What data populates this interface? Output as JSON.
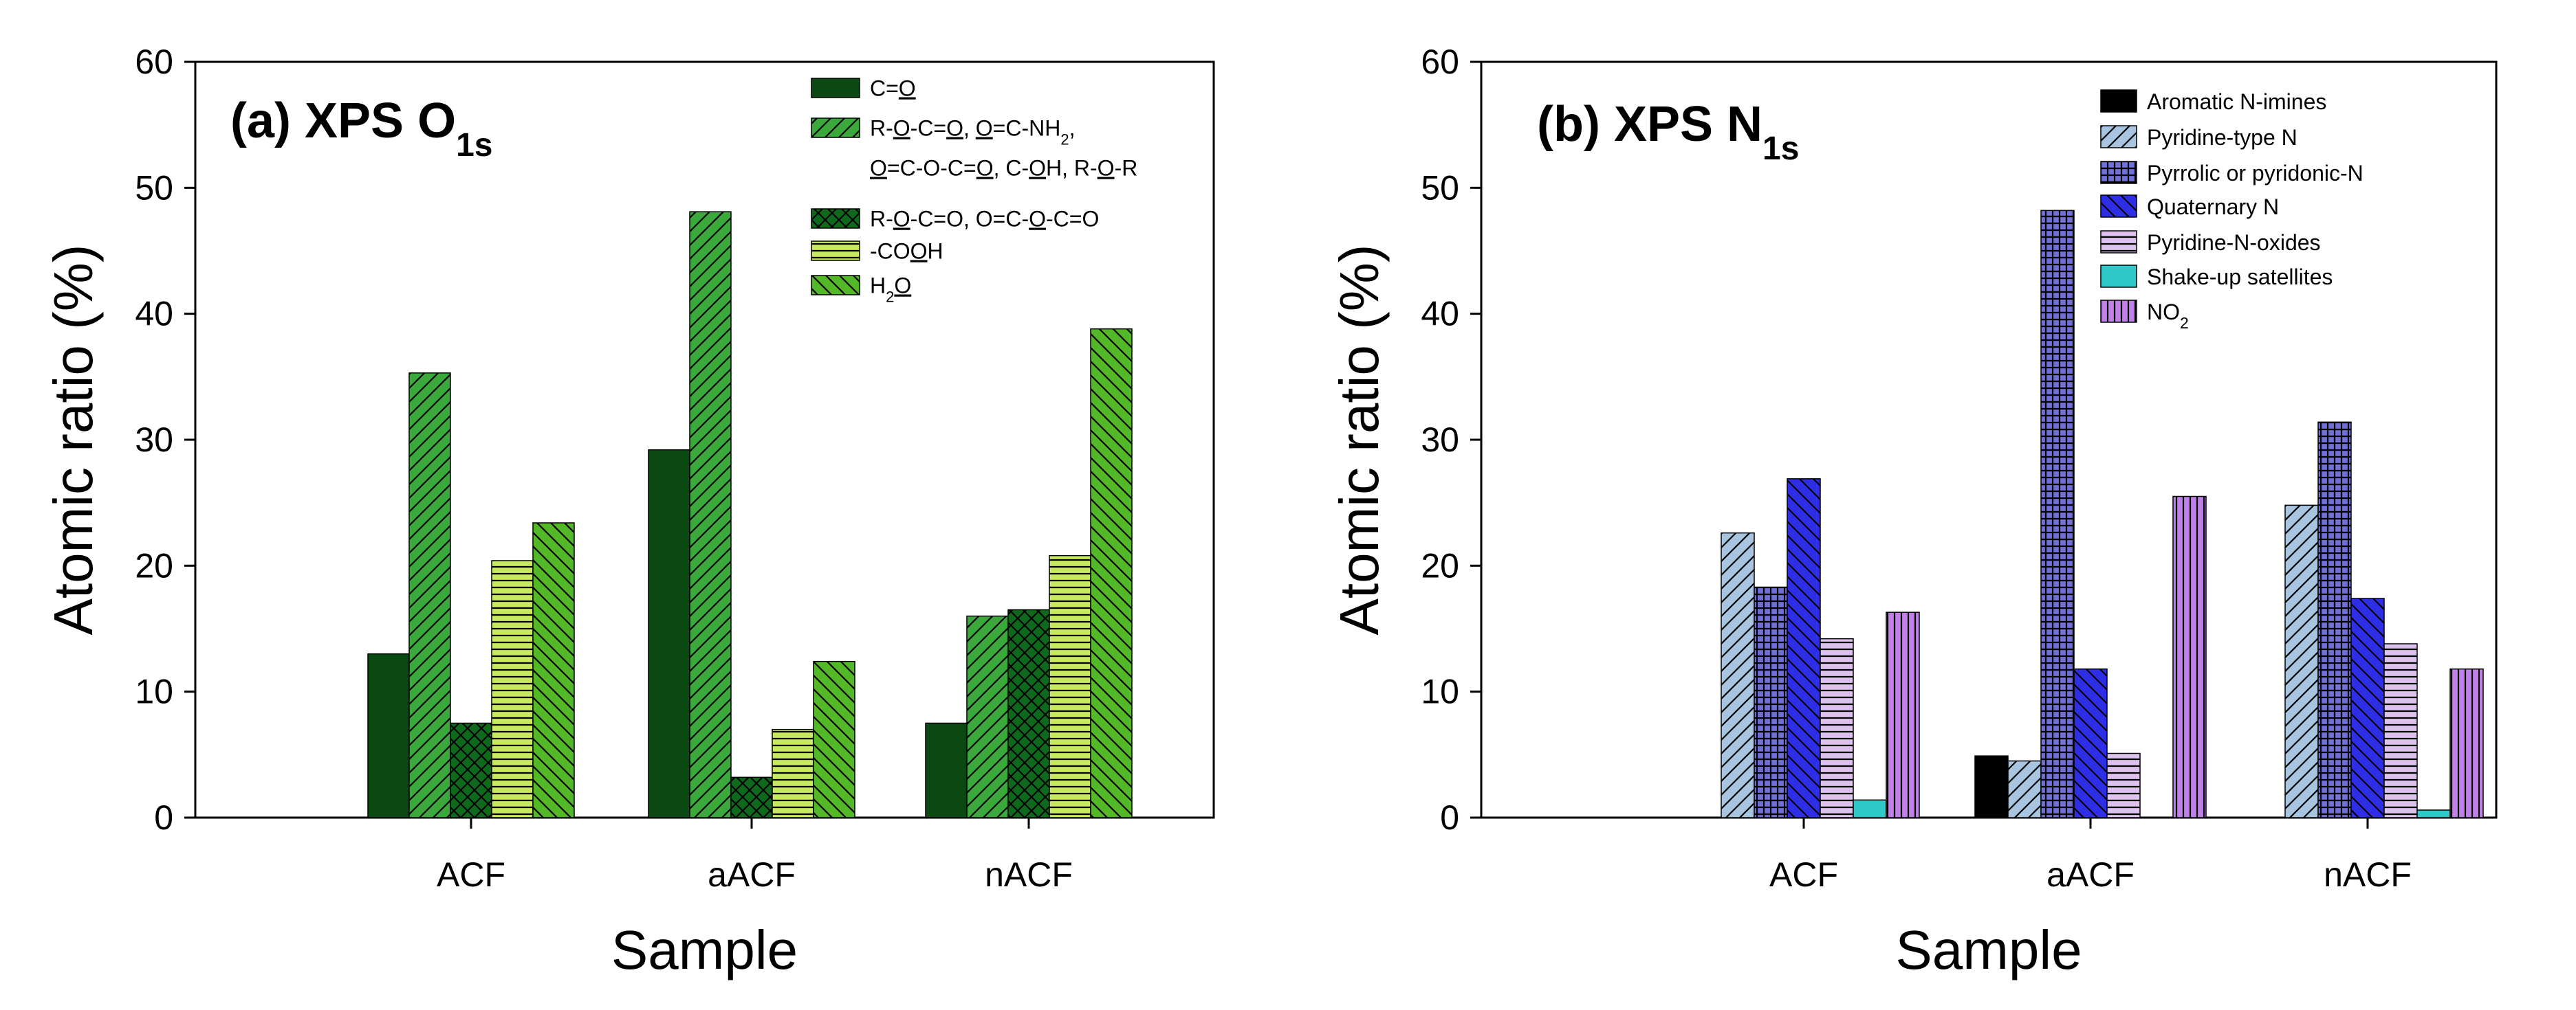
{
  "chart_data": [
    {
      "type": "bar",
      "title": "(a) XPS O",
      "title_sub": "1s",
      "xlabel": "Sample",
      "ylabel": "Atomic ratio (%)",
      "ylim": [
        0,
        60
      ],
      "yticks": [
        "0",
        "10",
        "20",
        "30",
        "40",
        "50",
        "60"
      ],
      "categories": [
        "ACF",
        "aACF",
        "nACF"
      ],
      "grid": false,
      "legend_position": "top-right",
      "series": [
        {
          "name": "C=O",
          "legend_runs": [
            {
              "t": "C="
            },
            {
              "t": "O",
              "u": true
            }
          ],
          "values": [
            13,
            29.2,
            7.5
          ],
          "color": "#0a4a12",
          "pattern": "solid"
        },
        {
          "name": "R-O-C=O, O=C-NH2, O=C-O-C=O, C-OH, R-O-R",
          "legend_lines": [
            [
              {
                "t": "R-"
              },
              {
                "t": "O",
                "u": true
              },
              {
                "t": "-C="
              },
              {
                "t": "O",
                "u": true
              },
              {
                "t": ", "
              },
              {
                "t": "O",
                "u": true
              },
              {
                "t": "=C-NH"
              },
              {
                "t": "2",
                "sub": true
              },
              {
                "t": ","
              }
            ],
            [
              {
                "t": "O",
                "u": true
              },
              {
                "t": "=C-O-C="
              },
              {
                "t": "O",
                "u": true
              },
              {
                "t": ", C-"
              },
              {
                "t": "O",
                "u": true
              },
              {
                "t": "H, R-"
              },
              {
                "t": "O",
                "u": true
              },
              {
                "t": "-R"
              }
            ]
          ],
          "values": [
            35.3,
            48.1,
            16
          ],
          "color": "#3aa83a",
          "pattern": "fwd-diag"
        },
        {
          "name": "R-O-C=O, O=C-O-C=O",
          "legend_runs": [
            {
              "t": "R-"
            },
            {
              "t": "O",
              "u": true
            },
            {
              "t": "-C=O, O=C-"
            },
            {
              "t": "O",
              "u": true
            },
            {
              "t": "-C=O"
            }
          ],
          "values": [
            7.5,
            3.2,
            16.5
          ],
          "color": "#0e6a1a",
          "pattern": "crosshatch"
        },
        {
          "name": "-COOH",
          "legend_runs": [
            {
              "t": "-CO"
            },
            {
              "t": "O",
              "u": true
            },
            {
              "t": "H"
            }
          ],
          "values": [
            20.4,
            7,
            20.8
          ],
          "color": "#c8ea60",
          "pattern": "horizontal"
        },
        {
          "name": "H2O",
          "legend_runs": [
            {
              "t": "H"
            },
            {
              "t": "2",
              "sub": true
            },
            {
              "t": "O",
              "u": true
            }
          ],
          "values": [
            23.4,
            12.4,
            38.8
          ],
          "color": "#52b828",
          "pattern": "back-diag"
        }
      ]
    },
    {
      "type": "bar",
      "title": "(b) XPS N",
      "title_sub": "1s",
      "xlabel": "Sample",
      "ylabel": "Atomic ratio (%)",
      "ylim": [
        0,
        60
      ],
      "yticks": [
        "0",
        "10",
        "20",
        "30",
        "40",
        "50",
        "60"
      ],
      "categories": [
        "ACF",
        "aACF",
        "nACF"
      ],
      "grid": false,
      "legend_position": "top-right",
      "series": [
        {
          "name": "Aromatic N-imines",
          "legend_runs": [
            {
              "t": "Aromatic N-imines"
            }
          ],
          "values": [
            0,
            4.9,
            0
          ],
          "color": "#000000",
          "pattern": "solid"
        },
        {
          "name": "Pyridine-type N",
          "legend_runs": [
            {
              "t": "Pyridine-type N"
            }
          ],
          "values": [
            22.6,
            4.5,
            24.8
          ],
          "color": "#a9c4de",
          "pattern": "fwd-diag"
        },
        {
          "name": "Pyrrolic or pyridonic-N",
          "legend_runs": [
            {
              "t": "Pyrrolic or pyridonic-N"
            }
          ],
          "values": [
            18.3,
            48.2,
            31.4
          ],
          "color": "#7070d8",
          "pattern": "grid"
        },
        {
          "name": "Quaternary N",
          "legend_runs": [
            {
              "t": "Quaternary N"
            }
          ],
          "values": [
            26.9,
            11.8,
            17.4
          ],
          "color": "#2e2ee6",
          "pattern": "back-diag"
        },
        {
          "name": "Pyridine-N-oxides",
          "legend_runs": [
            {
              "t": "Pyridine-N-oxides"
            }
          ],
          "values": [
            14.2,
            5.1,
            13.8
          ],
          "color": "#dcc2ec",
          "pattern": "horizontal"
        },
        {
          "name": "Shake-up satellites",
          "legend_runs": [
            {
              "t": "Shake-up satellites"
            }
          ],
          "values": [
            1.4,
            0,
            0.6
          ],
          "color": "#30c8c8",
          "pattern": "solid"
        },
        {
          "name": "NO2",
          "legend_runs": [
            {
              "t": "NO"
            },
            {
              "t": "2",
              "sub": true
            }
          ],
          "values": [
            16.3,
            25.5,
            11.8
          ],
          "color": "#c080e8",
          "pattern": "vertical"
        }
      ]
    }
  ]
}
